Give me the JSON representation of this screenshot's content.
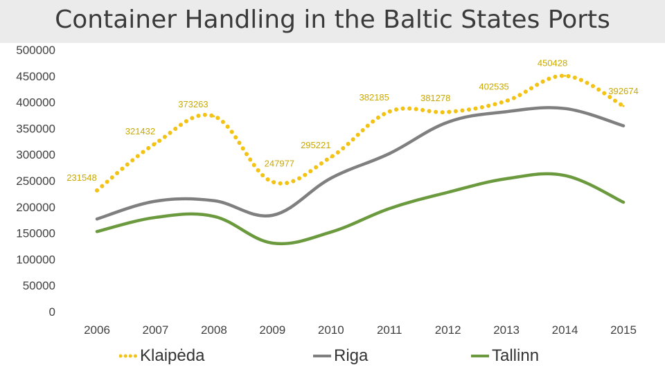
{
  "chart_data": {
    "type": "line",
    "title": "Container Handling in the Baltic States Ports",
    "categories": [
      "2006",
      "2007",
      "2008",
      "2009",
      "2010",
      "2011",
      "2012",
      "2013",
      "2014",
      "2015"
    ],
    "ylim": [
      0,
      500000
    ],
    "yticks": [
      "500000",
      "450000",
      "400000",
      "350000",
      "300000",
      "250000",
      "200000",
      "150000",
      "100000",
      "50000",
      "0"
    ],
    "grid": false,
    "legend_position": "bottom",
    "series": [
      {
        "name": "Klaipėda",
        "style": "dotted",
        "color": "#f2c314",
        "values": [
          231548,
          321432,
          373263,
          247977,
          295221,
          382185,
          381278,
          402535,
          450428,
          392674
        ],
        "labels": [
          "231548",
          "321432",
          "373263",
          "247977",
          "295221",
          "382185",
          "381278",
          "402535",
          "450428",
          "392674"
        ]
      },
      {
        "name": "Riga",
        "style": "solid",
        "color": "#7f7f7f",
        "values": [
          177000,
          211000,
          212000,
          184000,
          255000,
          302000,
          362000,
          382000,
          388000,
          355000
        ]
      },
      {
        "name": "Tallinn",
        "style": "solid",
        "color": "#6b9a3e",
        "values": [
          153000,
          180000,
          182000,
          131000,
          152000,
          197000,
          228000,
          254000,
          260000,
          209000
        ]
      }
    ]
  }
}
